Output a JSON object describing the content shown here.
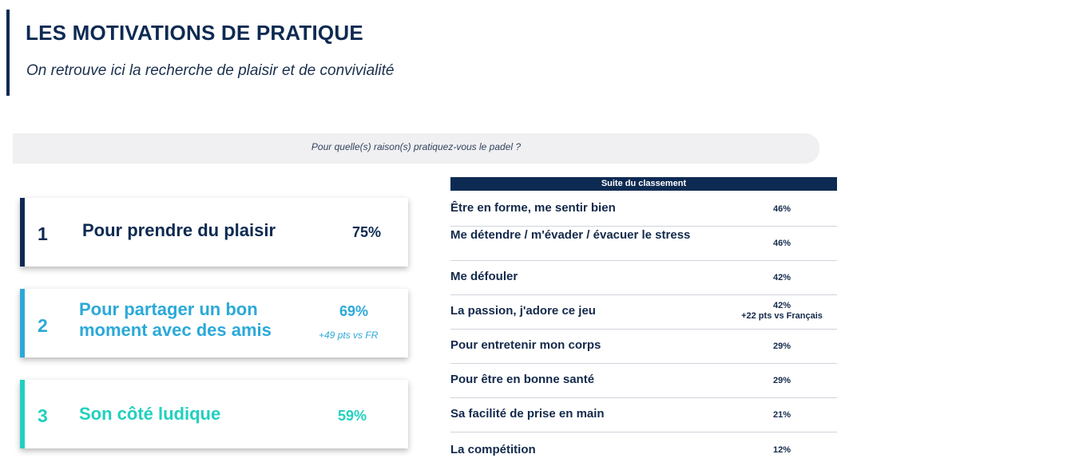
{
  "header": {
    "title": "LES MOTIVATIONS DE PRATIQUE",
    "subtitle": "On retrouve ici la recherche de plaisir et de convivialité"
  },
  "question": "Pour quelle(s) raison(s) pratiquez-vous le padel ?",
  "top_reasons": [
    {
      "rank": "1",
      "label": "Pour prendre du plaisir",
      "percent": "75%",
      "note": "",
      "color": "#0d2a52"
    },
    {
      "rank": "2",
      "label_line1": "Pour partager un bon",
      "label_line2": "moment avec des amis",
      "percent": "69%",
      "note": "+49 pts vs FR",
      "color": "#2ba9d8"
    },
    {
      "rank": "3",
      "label": "Son côté ludique",
      "percent": "59%",
      "note": "",
      "color": "#21d0bf"
    }
  ],
  "ranking_table": {
    "header": "Suite du classement",
    "rows": [
      {
        "label": "Être en forme, me sentir bien",
        "value": "46%",
        "note": ""
      },
      {
        "label": "Me détendre / m'évader / évacuer le stress",
        "value": "46%",
        "note": ""
      },
      {
        "label": "Me défouler",
        "value": "42%",
        "note": ""
      },
      {
        "label": "La passion, j'adore ce jeu",
        "value": "42%",
        "note": "+22 pts vs Français"
      },
      {
        "label": "Pour entretenir mon corps",
        "value": "29%",
        "note": ""
      },
      {
        "label": "Pour être en bonne santé",
        "value": "29%",
        "note": ""
      },
      {
        "label": "Sa facilité de prise en main",
        "value": "21%",
        "note": ""
      },
      {
        "label": "La compétition",
        "value": "12%",
        "note": ""
      }
    ]
  }
}
